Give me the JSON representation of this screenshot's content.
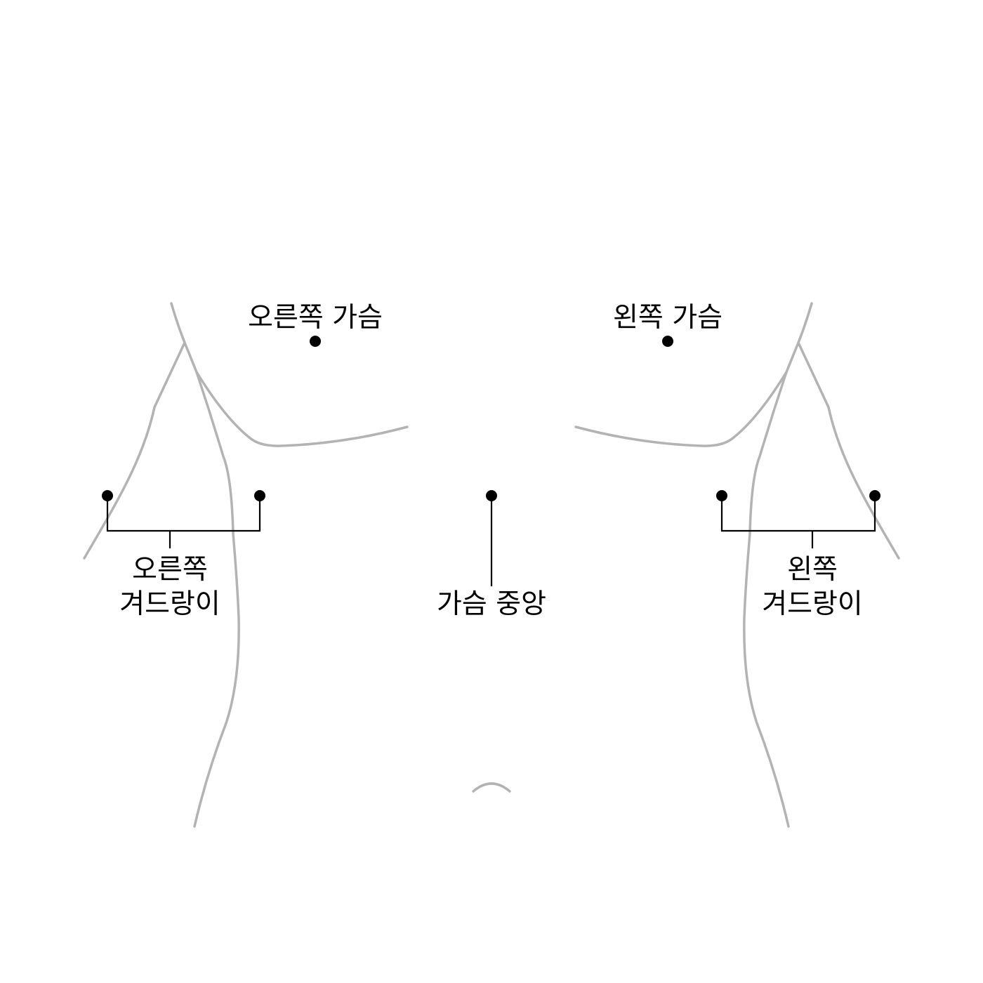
{
  "labels": {
    "right_chest": "오른쪽 가슴",
    "left_chest": "왼쪽 가슴",
    "center_chest": "가슴 중앙",
    "right_armpit_line1": "오른쪽",
    "right_armpit_line2": "겨드랑이",
    "left_armpit_line1": "왼쪽",
    "left_armpit_line2": "겨드랑이"
  },
  "colors": {
    "outline": "#b3b3b3",
    "marker": "#000000",
    "background": "#ffffff"
  }
}
